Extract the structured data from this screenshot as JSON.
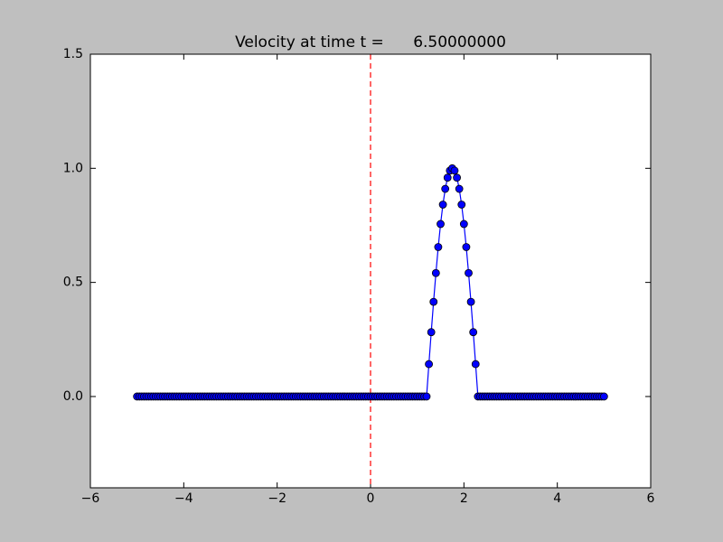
{
  "chart_data": {
    "type": "line",
    "title": "Velocity at time t =      6.50000000",
    "x": [
      -5,
      -4.95,
      -4.9,
      -4.85,
      -4.8,
      -4.75,
      -4.7,
      -4.65,
      -4.6,
      -4.55,
      -4.5,
      -4.45,
      -4.4,
      -4.35,
      -4.3,
      -4.25,
      -4.2,
      -4.15,
      -4.1,
      -4.05,
      -4,
      -3.95,
      -3.9,
      -3.85,
      -3.8,
      -3.75,
      -3.7,
      -3.65,
      -3.6,
      -3.55,
      -3.5,
      -3.45,
      -3.4,
      -3.35,
      -3.3,
      -3.25,
      -3.2,
      -3.15,
      -3.1,
      -3.05,
      -3,
      -2.95,
      -2.9,
      -2.85,
      -2.8,
      -2.75,
      -2.7,
      -2.65,
      -2.6,
      -2.55,
      -2.5,
      -2.45,
      -2.4,
      -2.35,
      -2.3,
      -2.25,
      -2.2,
      -2.15,
      -2.1,
      -2.05,
      -2,
      -1.95,
      -1.9,
      -1.85,
      -1.8,
      -1.75,
      -1.7,
      -1.65,
      -1.6,
      -1.55,
      -1.5,
      -1.45,
      -1.4,
      -1.35,
      -1.3,
      -1.25,
      -1.2,
      -1.15,
      -1.1,
      -1.05,
      -1,
      -0.95,
      -0.9,
      -0.85,
      -0.8,
      -0.75,
      -0.7,
      -0.65,
      -0.6,
      -0.55,
      -0.5,
      -0.45,
      -0.4,
      -0.35,
      -0.3,
      -0.25,
      -0.2,
      -0.15,
      -0.1,
      -0.05,
      0,
      0.05,
      0.1,
      0.15,
      0.2,
      0.25,
      0.3,
      0.35,
      0.4,
      0.45,
      0.5,
      0.55,
      0.6,
      0.65,
      0.7,
      0.75,
      0.8,
      0.85,
      0.9,
      0.95,
      1,
      1.05,
      1.1,
      1.15,
      1.2,
      1.25,
      1.3,
      1.35,
      1.4,
      1.45,
      1.5,
      1.55,
      1.6,
      1.65,
      1.7,
      1.75,
      1.8,
      1.85,
      1.9,
      1.95,
      2,
      2.05,
      2.1,
      2.15,
      2.2,
      2.25,
      2.3,
      2.35,
      2.4,
      2.45,
      2.5,
      2.55,
      2.6,
      2.65,
      2.7,
      2.75,
      2.8,
      2.85,
      2.9,
      2.95,
      3,
      3.05,
      3.1,
      3.15,
      3.2,
      3.25,
      3.3,
      3.35,
      3.4,
      3.45,
      3.5,
      3.55,
      3.6,
      3.65,
      3.7,
      3.75,
      3.8,
      3.85,
      3.9,
      3.95,
      4,
      4.05,
      4.1,
      4.15,
      4.2,
      4.25,
      4.3,
      4.35,
      4.4,
      4.45,
      4.5,
      4.55,
      4.6,
      4.65,
      4.7,
      4.75,
      4.8,
      4.85,
      4.9,
      4.95,
      5
    ],
    "series": [
      {
        "color": "#0000ff",
        "values": [
          0,
          0,
          0,
          0,
          0,
          0,
          0,
          0,
          0,
          0,
          0,
          0,
          0,
          0,
          0,
          0,
          0,
          0,
          0,
          0,
          0,
          0,
          0,
          0,
          0,
          0,
          0,
          0,
          0,
          0,
          0,
          0,
          0,
          0,
          0,
          0,
          0,
          0,
          0,
          0,
          0,
          0,
          0,
          0,
          0,
          0,
          0,
          0,
          0,
          0,
          0,
          0,
          0,
          0,
          0,
          0,
          0,
          0,
          0,
          0,
          0,
          0,
          0,
          0,
          0,
          0,
          0,
          0,
          0,
          0,
          0,
          0,
          0,
          0,
          0,
          0,
          0,
          0,
          0,
          0,
          0,
          0,
          0,
          0,
          0,
          0,
          0,
          0,
          0,
          0,
          0,
          0,
          0,
          0,
          0,
          0,
          0,
          0,
          0,
          0,
          0,
          0,
          0,
          0,
          0,
          0,
          0,
          0,
          0,
          0,
          0,
          0,
          0,
          0,
          0,
          0,
          0,
          0,
          0,
          0,
          0,
          0,
          0,
          0,
          0,
          0.142,
          0.282,
          0.415,
          0.541,
          0.655,
          0.756,
          0.841,
          0.91,
          0.959,
          0.99,
          1,
          0.99,
          0.959,
          0.91,
          0.841,
          0.756,
          0.655,
          0.541,
          0.415,
          0.282,
          0.142,
          0,
          0,
          0,
          0,
          0,
          0,
          0,
          0,
          0,
          0,
          0,
          0,
          0,
          0,
          0,
          0,
          0,
          0,
          0,
          0,
          0,
          0,
          0,
          0,
          0,
          0,
          0,
          0,
          0,
          0,
          0,
          0,
          0,
          0,
          0,
          0,
          0,
          0,
          0,
          0,
          0,
          0,
          0,
          0,
          0,
          0,
          0,
          0,
          0,
          0,
          0,
          0,
          0,
          0,
          0
        ]
      }
    ],
    "vline": {
      "x": 0,
      "color": "#ff0000"
    },
    "xlim": [
      -6,
      6
    ],
    "xticks": [
      {
        "value": -6,
        "label": "−6"
      },
      {
        "value": -4,
        "label": "−4"
      },
      {
        "value": -2,
        "label": "−2"
      },
      0,
      2,
      4,
      6
    ],
    "ylim": [
      -0.4,
      1.5
    ],
    "yticks": [
      {
        "value": 0,
        "label": "0.0"
      },
      0.5,
      {
        "value": 1,
        "label": "1.0"
      },
      1.5
    ]
  }
}
